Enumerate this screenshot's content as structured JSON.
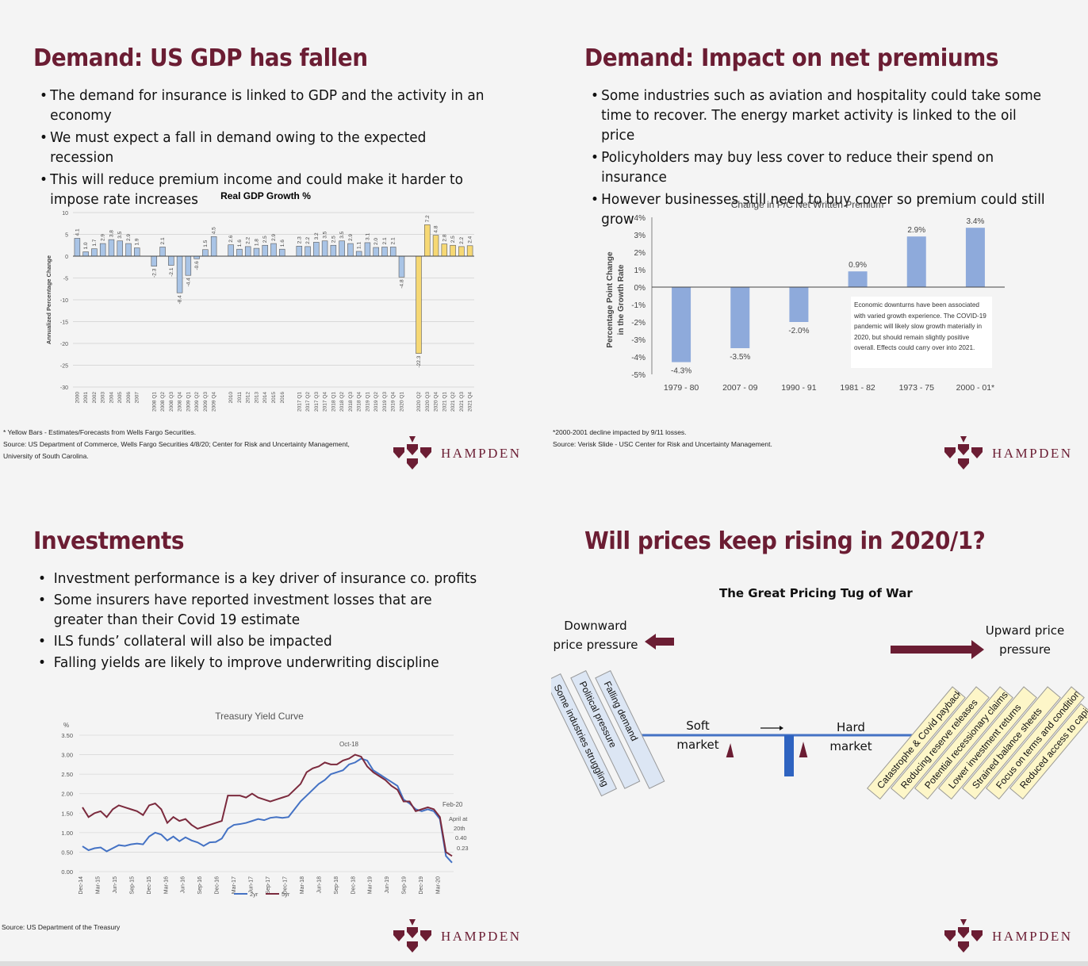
{
  "slides": {
    "gdp": {
      "title": "Demand: US GDP has fallen",
      "bullets": [
        "The demand for insurance is linked to GDP and the activity in an economy",
        "We must expect a fall in demand owing to the expected recession",
        "This will reduce premium income and could make it harder to impose rate increases"
      ],
      "note_yellow": "* Yellow Bars - Estimates/Forecasts from Wells Fargo Securities.",
      "source": "Source: US Department of Commerce, Wells Fargo Securities 4/8/20; Center for Risk and Uncertainty Management, University of South Carolina."
    },
    "premiums": {
      "title": "Demand: Impact on net premiums",
      "bullets": [
        "Some industries such as aviation and hospitality could take some time to recover. The energy market activity is linked to the oil price",
        "Policyholders may buy less cover to reduce their spend on insurance",
        "However businesses still need to buy cover so premium could still grow"
      ],
      "note": "*2000-2001 decline impacted by 9/11 losses.",
      "source": "Source: Verisk Slide - USC Center for Risk and Uncertainty Management."
    },
    "investments": {
      "title": "Investments",
      "bullets": [
        "Investment performance is a key driver of insurance co. profits",
        "Some insurers have reported investment losses that are greater than their Covid 19 estimate",
        "ILS funds’ collateral will also be impacted",
        "Falling yields are likely to improve underwriting discipline"
      ],
      "source": "Source: US Department of the Treasury"
    },
    "pricing": {
      "title": "Will prices keep rising in 2020/1?",
      "subtitle": "The Great Pricing Tug of War",
      "downward_line1": "Downward",
      "downward_line2": "price pressure",
      "upward_line1": "Upward price",
      "upward_line2": "pressure",
      "soft_line1": "Soft",
      "soft_line2": "market",
      "hard_line1": "Hard",
      "hard_line2": "market",
      "down_factors": [
        "Some industries struggling",
        "Political pressure",
        "Falling demand"
      ],
      "up_factors": [
        "Catastrophe & Covid payback",
        "Reducing reserve releases",
        "Potential recessionary claims",
        "Lower investment returns",
        "Strained balance sheets",
        "Focus on terms and conditions",
        "Reduced access to capital"
      ],
      "colors": {
        "down_box": "#dce6f4",
        "up_box": "#fdf6c8",
        "arrow": "#6b1d33",
        "beam": "#4472c4"
      }
    }
  },
  "logo_text": "HAMPDEN",
  "colors": {
    "title": "#6b1d33",
    "actual_bar": "#a9c4e6",
    "forecast_bar": "#f6d874",
    "premium_bar": "#8eaadb",
    "line_2yr": "#4472c4",
    "line_5yr": "#7b2a3d"
  },
  "chart_data": [
    {
      "type": "bar",
      "title": "Real GDP Growth %",
      "ylabel": "Annualized Percentage Change",
      "ylim": [
        -30,
        10
      ],
      "yticks": [
        10,
        5,
        0,
        -5,
        -10,
        -15,
        -20,
        -25,
        -30
      ],
      "categories": [
        "2000",
        "2001",
        "2002",
        "2003",
        "2004",
        "2005",
        "2006",
        "2007",
        "",
        "2008 Q1",
        "2008 Q2",
        "2008 Q3",
        "2008 Q4",
        "2009 Q1",
        "2009 Q2",
        "2009 Q3",
        "2009 Q4",
        "",
        "2010",
        "2011",
        "2012",
        "2013",
        "2014",
        "2015",
        "2016",
        "",
        "2017 Q1",
        "2017 Q2",
        "2017 Q3",
        "2017 Q4",
        "2018 Q1",
        "2018 Q2",
        "2018 Q3",
        "2018 Q4",
        "2019 Q1",
        "2019 Q2",
        "2019 Q3",
        "2019 Q4",
        "2020 Q1",
        "",
        "2020 Q2",
        "2020 Q3",
        "2020 Q4",
        "2021 Q1",
        "2021 Q2",
        "2021 Q3",
        "2021 Q4"
      ],
      "values": [
        4.1,
        1.0,
        1.7,
        2.9,
        3.8,
        3.5,
        2.9,
        1.9,
        null,
        -2.3,
        2.1,
        -2.1,
        -8.4,
        -4.4,
        -0.6,
        1.5,
        4.5,
        null,
        2.6,
        1.6,
        2.2,
        1.8,
        2.5,
        2.9,
        1.6,
        null,
        2.3,
        2.2,
        3.2,
        3.5,
        2.5,
        3.5,
        2.9,
        1.1,
        3.1,
        2.0,
        2.1,
        2.1,
        -4.8,
        null,
        -22.3,
        7.2,
        4.8,
        2.8,
        2.5,
        2.2,
        2.4
      ],
      "labels": [
        "4.1",
        "1.0",
        "1.7",
        "2.9",
        "3.8",
        "3.5",
        "2.9",
        "1.9",
        "",
        "-2.3",
        "2.1",
        "-2.1",
        "-8.4",
        "-4.4",
        "-0.6",
        "1.5",
        "4.5",
        "",
        "2.6",
        "1.6",
        "2.2",
        "1.8",
        "2.5",
        "2.9",
        "1.6",
        "",
        "2.3",
        "2.2",
        "3.2",
        "3.5",
        "2.5",
        "3.5",
        "2.9",
        "1.1",
        "3.1",
        "2.0",
        "2.1",
        "2.1",
        "-4.8",
        "",
        "-22.3",
        "7.2",
        "4.8",
        "2.8",
        "2.5",
        "2.2",
        "2.4"
      ],
      "forecast_from_index": 40
    },
    {
      "type": "bar",
      "title": "Change in P/C Net Written Premium",
      "ylabel_line1": "Percentage Point Change",
      "ylabel_line2": "in the Growth Rate",
      "ylim": [
        -5,
        4
      ],
      "yticks": [
        "4%",
        "3%",
        "2%",
        "1%",
        "0%",
        "-1%",
        "-2%",
        "-3%",
        "-4%",
        "-5%"
      ],
      "categories": [
        "1979 - 80",
        "2007 - 09",
        "1990 - 91",
        "1981 - 82",
        "1973 - 75",
        "2000 - 01*"
      ],
      "values": [
        -4.3,
        -3.5,
        -2.0,
        0.9,
        2.9,
        3.4
      ],
      "labels": [
        "-4.3%",
        "-3.5%",
        "-2.0%",
        "0.9%",
        "2.9%",
        "3.4%"
      ],
      "annotation": "Economic downturns have been associated with varied growth experience. The COVID-19 pandemic will likely slow growth materially in 2020, but should remain slightly positive overall. Effects could carry over into 2021."
    },
    {
      "type": "line",
      "title": "Treasury Yield Curve",
      "ylabel": "%",
      "ylim": [
        0,
        3.5
      ],
      "yticks": [
        "3.50",
        "3.00",
        "2.50",
        "2.00",
        "1.50",
        "1.00",
        "0.50",
        "0.00"
      ],
      "xticks": [
        "Dec-14",
        "Mar-15",
        "Jun-15",
        "Sep-15",
        "Dec-15",
        "Mar-16",
        "Jun-16",
        "Sep-16",
        "Dec-16",
        "Mar-17",
        "Jun-17",
        "Sep-17",
        "Dec-17",
        "Mar-18",
        "Jun-18",
        "Sep-18",
        "Dec-18",
        "Mar-19",
        "Jun-19",
        "Sep-19",
        "Dec-19",
        "Mar-20"
      ],
      "annotations": [
        "Oct-18",
        "Feb-20",
        "April at 20th",
        "0.40",
        "0.23"
      ],
      "series": [
        {
          "name": "2yr",
          "values": [
            0.65,
            0.55,
            0.6,
            0.62,
            0.52,
            0.6,
            0.68,
            0.66,
            0.7,
            0.72,
            0.7,
            0.9,
            1.0,
            0.95,
            0.8,
            0.9,
            0.78,
            0.88,
            0.8,
            0.75,
            0.66,
            0.75,
            0.76,
            0.85,
            1.1,
            1.2,
            1.22,
            1.25,
            1.3,
            1.35,
            1.32,
            1.38,
            1.4,
            1.38,
            1.4,
            1.6,
            1.8,
            1.95,
            2.1,
            2.25,
            2.35,
            2.5,
            2.55,
            2.6,
            2.75,
            2.8,
            2.9,
            2.85,
            2.6,
            2.5,
            2.4,
            2.3,
            2.2,
            1.85,
            1.75,
            1.6,
            1.55,
            1.6,
            1.55,
            1.35,
            0.4,
            0.23
          ]
        },
        {
          "name": "5yr",
          "values": [
            1.65,
            1.4,
            1.5,
            1.55,
            1.4,
            1.6,
            1.7,
            1.65,
            1.6,
            1.55,
            1.45,
            1.7,
            1.75,
            1.6,
            1.25,
            1.4,
            1.3,
            1.35,
            1.2,
            1.1,
            1.15,
            1.2,
            1.25,
            1.3,
            1.95,
            1.95,
            1.95,
            1.9,
            2.0,
            1.9,
            1.85,
            1.8,
            1.85,
            1.9,
            1.95,
            2.1,
            2.25,
            2.55,
            2.65,
            2.7,
            2.8,
            2.75,
            2.75,
            2.85,
            2.9,
            3.0,
            2.95,
            2.7,
            2.55,
            2.45,
            2.35,
            2.2,
            2.1,
            1.8,
            1.8,
            1.55,
            1.6,
            1.65,
            1.6,
            1.4,
            0.5,
            0.4
          ]
        }
      ]
    }
  ]
}
